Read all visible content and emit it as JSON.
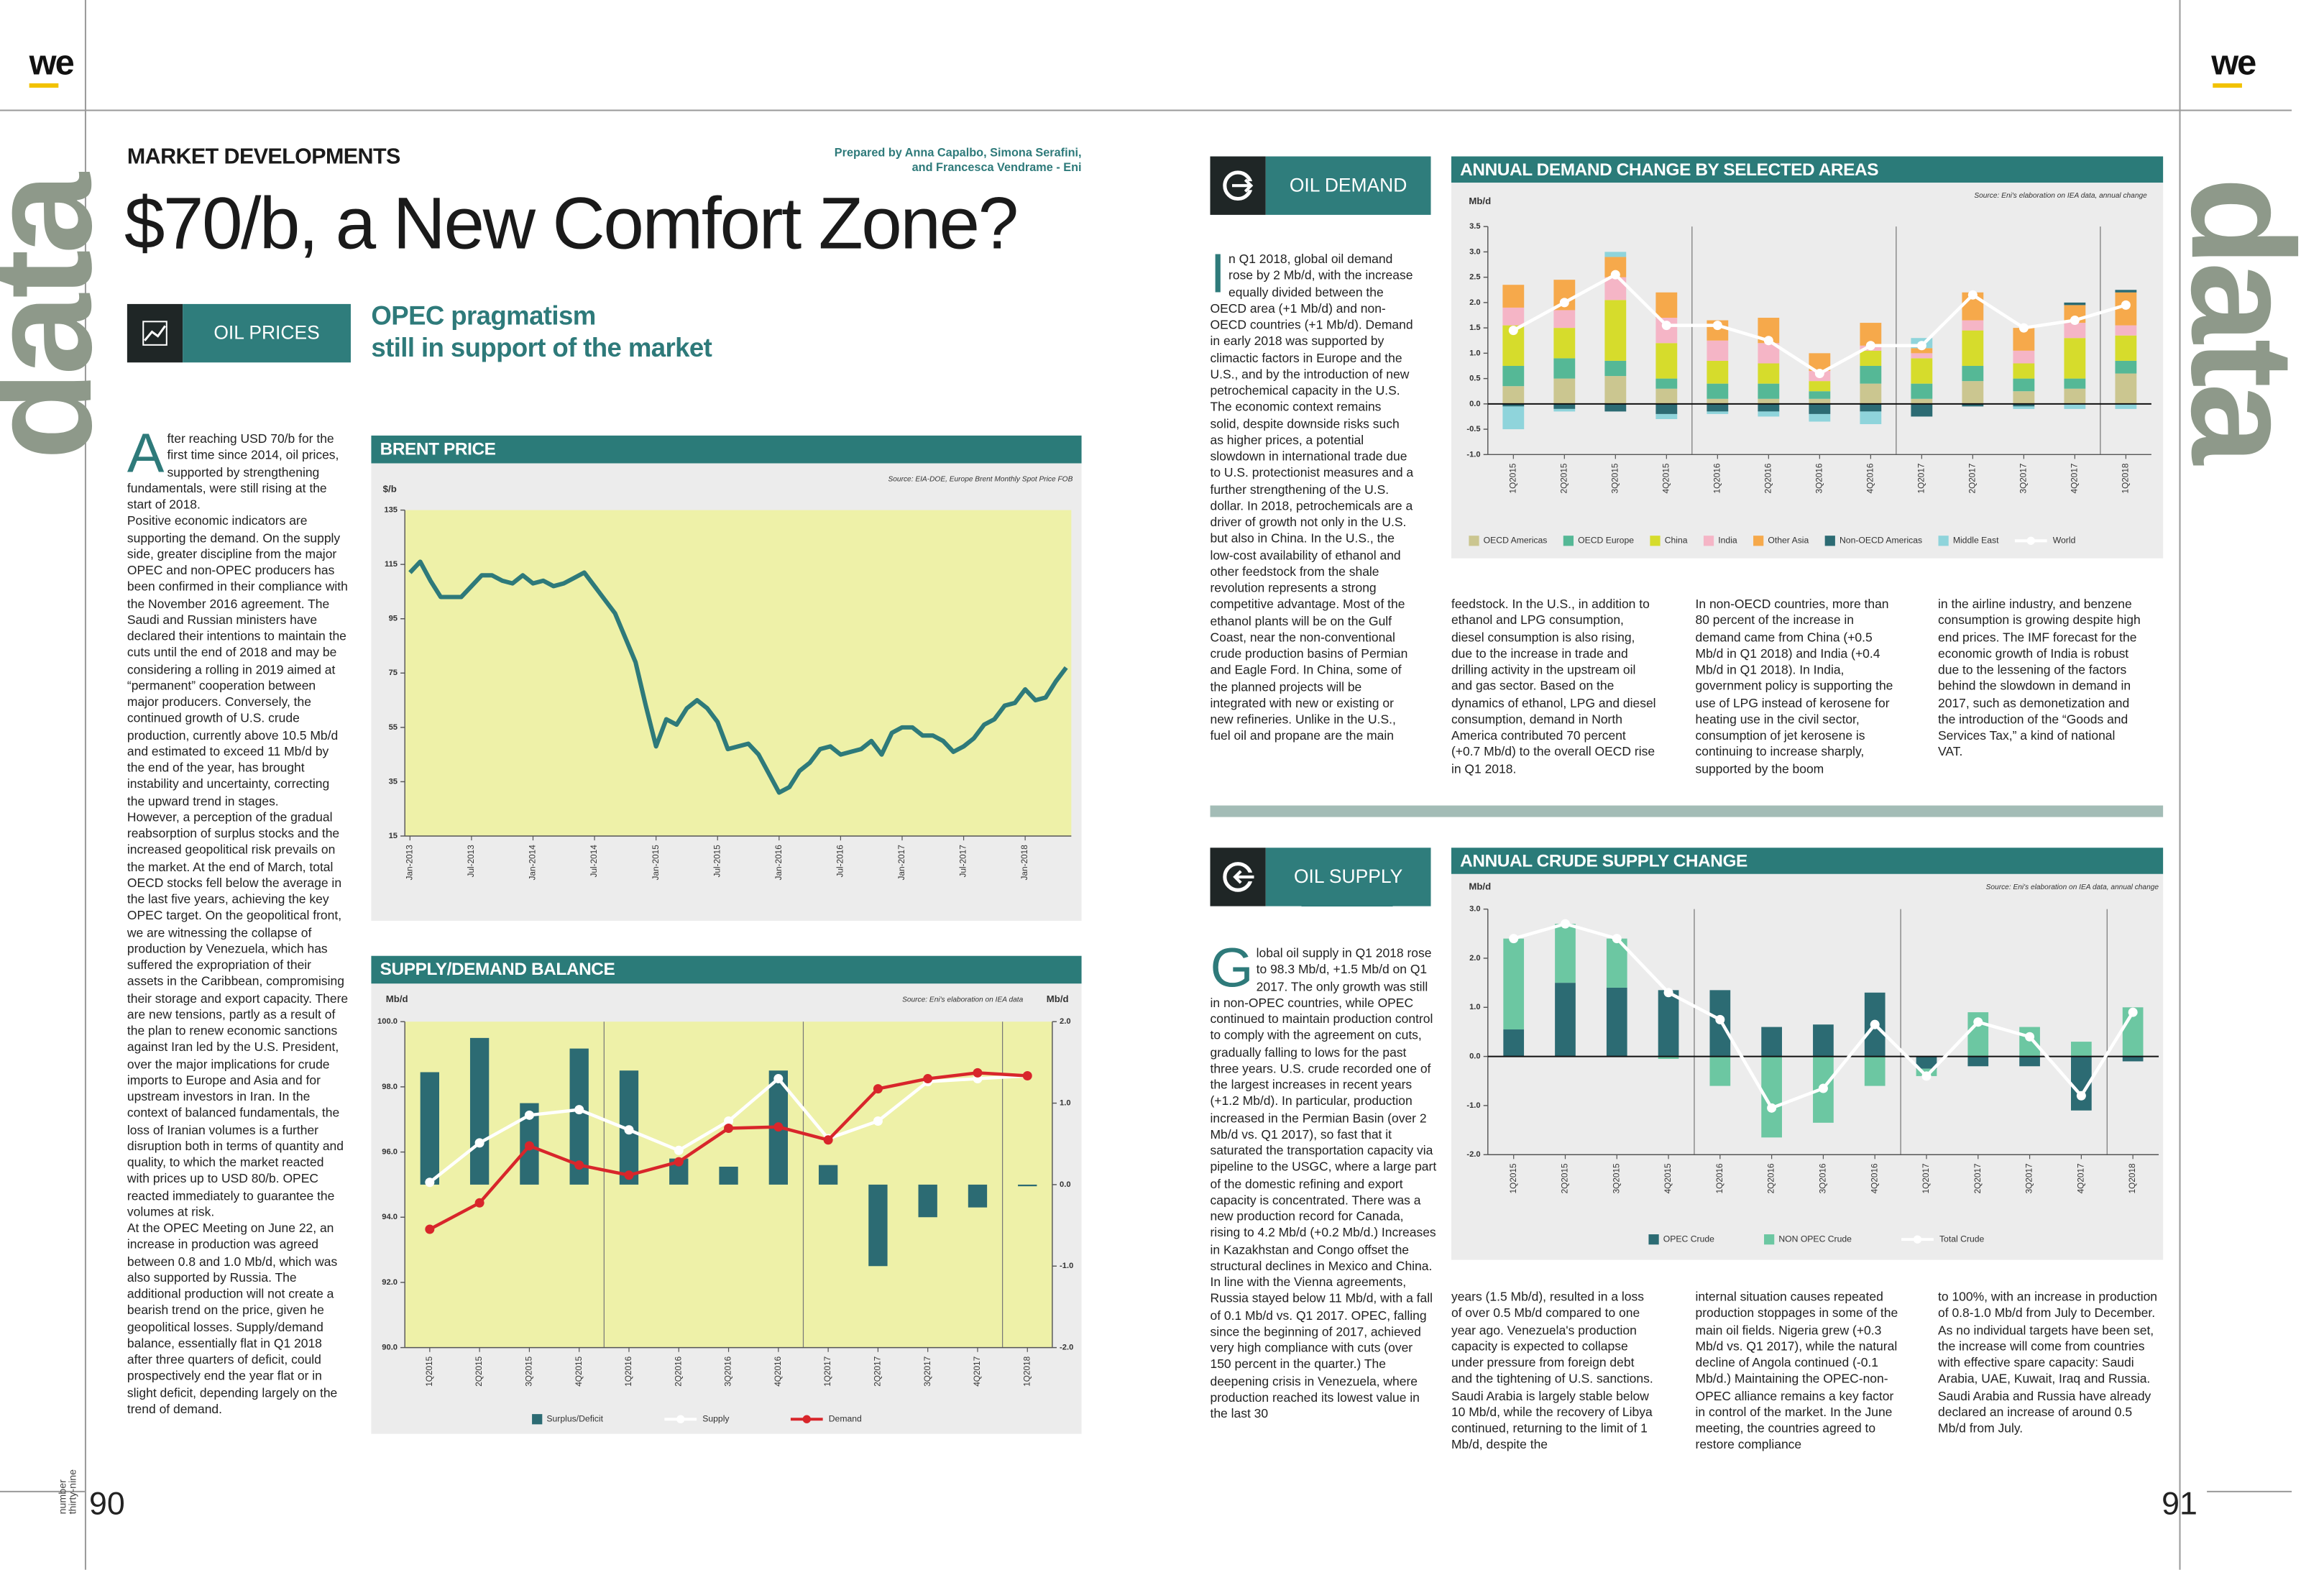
{
  "header": {
    "logo_left": "we",
    "logo_right": "we",
    "side_left": "data",
    "side_right": "data",
    "section": "MARKET DEVELOPMENTS",
    "authors": [
      "Prepared by Anna Capalbo, Simona Serafini,",
      "and Francesca Vendrame - Eni"
    ],
    "title": "$70/b, a New Comfort Zone?"
  },
  "oil_prices": {
    "label": "OIL PRICES",
    "subtitle": [
      "OPEC pragmatism",
      "still in support of the market"
    ],
    "paragraphs": [
      "After reaching USD 70/b for the first time since 2014, oil prices, supported by strengthening fundamentals, were still rising at the start of 2018.",
      "Positive economic indicators are supporting the demand. On the supply side, greater discipline from the major OPEC and non-OPEC producers has been confirmed in their compliance with the November 2016 agreement. The Saudi and Russian ministers have declared their intentions to maintain the cuts until the end of 2018 and may be considering a rolling in 2019 aimed at “permanent” cooperation between major producers. Conversely, the continued growth of U.S. crude production, currently above 10.5 Mb/d and estimated to exceed 11 Mb/d by the end of the year, has brought instability and uncertainty, correcting the upward trend in stages.",
      "However, a perception of the gradual reabsorption of surplus stocks and the increased geopolitical risk prevails on the market. At the end of March, total OECD stocks fell below the average in the last five years, achieving the key OPEC target. On the geopolitical front, we are witnessing the collapse of production by Venezuela, which has suffered the expropriation of their assets in the Caribbean, compromising their storage and export capacity. There are new tensions, partly as a result of the plan to renew economic sanctions against Iran led by the U.S. President, over the major implications for crude imports to Europe and Asia and for upstream investors in Iran. In the context of balanced fundamentals, the loss of Iranian volumes is a further disruption both in terms of quantity and quality, to which the market reacted with prices up to USD 80/b. OPEC reacted immediately to guarantee the volumes at risk.",
      "At the OPEC Meeting on June 22, an increase in production was agreed between 0.8 and 1.0 Mb/d, which was also supported by Russia. The additional production will not create a bearish trend on the price, given he geopolitical losses. Supply/demand balance, essentially flat in Q1 2018 after three quarters of deficit, could prospectively end the year flat or in slight deficit, depending largely on the trend of demand."
    ]
  },
  "oil_demand": {
    "label": "OIL DEMAND",
    "columns": [
      "In Q1 2018, global oil demand rose by 2 Mb/d, with the increase equally divided between the OECD area (+1 Mb/d) and non-OECD countries (+1 Mb/d). Demand in early 2018 was supported by climactic factors in Europe and the U.S., and by the introduction of new petrochemical capacity in the U.S. The economic context remains solid, despite downside risks such as higher prices, a potential slowdown in international trade due to U.S. protectionist measures and a further strengthening of the U.S. dollar. In 2018, petrochemicals are a driver of growth not only in the U.S. but also in China. In the U.S., the low-cost availability of ethanol and other feedstock from the shale revolution represents a strong competitive advantage. Most of the ethanol plants will be on the Gulf Coast, near the non-conventional crude production basins of Permian and Eagle Ford. In China, some of the planned projects will be integrated with new or existing or new refineries. Unlike in the U.S., fuel oil and propane are the main",
      "feedstock. In the U.S., in addition to ethanol and LPG consumption, diesel consumption is also rising, due to the increase in trade and drilling activity in the upstream oil and gas sector. Based on the dynamics of ethanol, LPG and diesel consumption, demand in North America contributed 70 percent (+0.7 Mb/d) to the overall OECD rise in Q1 2018.",
      "In non-OECD countries, more than 80 percent of the increase in demand came from China (+0.5 Mb/d in Q1 2018) and India (+0.4 Mb/d in Q1 2018). In India, government policy is supporting the use of LPG instead of kerosene for heating use in the civil sector, consumption of jet kerosene is continuing to increase sharply, supported by the boom",
      "in the airline industry, and benzene consumption is growing despite high end prices. The IMF forecast for the economic growth of India is robust due to the lessening of the factors behind the slowdown in demand in 2017, such as demonetization and the introduction of the “Goods and Services Tax,” a kind of national VAT."
    ]
  },
  "oil_supply": {
    "label": "OIL SUPPLY",
    "columns": [
      "Global oil supply in Q1 2018 rose to 98.3 Mb/d, +1.5 Mb/d on Q1 2017. The only growth was still in non-OPEC countries, while OPEC continued to maintain production control to comply with the agreement on cuts, gradually falling to lows for the past three years. U.S. crude recorded one of the largest increases in recent years (+1.2 Mb/d). In particular, production increased in the Permian Basin (over 2 Mb/d vs. Q1 2017), so fast that it saturated the transportation capacity via pipeline to the USGC, where a large part of the domestic refining and export capacity is concentrated. There was a new production record for Canada, rising to 4.2 Mb/d (+0.2 Mb/d.) Increases in Kazakhstan and Congo offset the structural declines in Mexico and China. In line with the Vienna agreements, Russia stayed below 11 Mb/d, with a fall of 0.1 Mb/d vs. Q1 2017. OPEC, falling since the beginning of 2017, achieved very high compliance with cuts (over 150 percent in the quarter.) The deepening crisis in Venezuela, where production reached its lowest value in the last 30",
      "years (1.5 Mb/d), resulted in a loss of over 0.5 Mb/d compared to one year ago. Venezuela's production capacity is expected to collapse under pressure from foreign debt and the tightening of U.S. sanctions. Saudi Arabia is largely stable below 10 Mb/d, while the recovery of Libya continued, returning to the limit of 1 Mb/d, despite the",
      "internal situation causes repeated production stoppages in some of the main oil fields. Nigeria grew (+0.3 Mb/d vs. Q1 2017), while the natural decline of Angola continued (-0.1 Mb/d.) Maintaining the OPEC-non-OPEC alliance remains a key factor in control of the market. In the June meeting, the countries agreed to restore compliance",
      "to 100%, with an increase in production of 0.8-1.0 Mb/d from July to December. As no individual targets have been set, the increase will come from countries with effective spare capacity: Saudi Arabia, UAE, Kuwait, Iraq and Russia. Saudi Arabia and Russia have already declared an increase of around 0.5 Mb/d from July."
    ]
  },
  "footer": {
    "page_left": "90",
    "page_right": "91",
    "issue": [
      "number",
      "thirty-nine"
    ]
  },
  "chart_data": [
    {
      "type": "line",
      "title": "BRENT PRICE",
      "source": "Source: EIA-DOE, Europe Brent Monthly Spot Price FOB",
      "y_label": "$/b",
      "categories": [
        "Jan-2013",
        null,
        null,
        null,
        null,
        null,
        "Jul-2013",
        null,
        null,
        null,
        null,
        null,
        "Jan-2014",
        null,
        null,
        null,
        null,
        null,
        "Jul-2014",
        null,
        null,
        null,
        null,
        null,
        "Jan-2015",
        null,
        null,
        null,
        null,
        null,
        "Jul-2015",
        null,
        null,
        null,
        null,
        null,
        "Jan-2016",
        null,
        null,
        null,
        null,
        null,
        "Jul-2016",
        null,
        null,
        null,
        null,
        null,
        "Jan-2017",
        null,
        null,
        null,
        null,
        null,
        "Jul-2017",
        null,
        null,
        null,
        null,
        null,
        "Jan-2018",
        null,
        null,
        null,
        null
      ],
      "values": [
        112,
        116,
        109,
        103,
        103,
        103,
        107,
        111,
        111,
        109,
        108,
        111,
        108,
        109,
        107,
        108,
        110,
        112,
        107,
        102,
        97,
        88,
        79,
        63,
        48,
        58,
        56,
        62,
        65,
        62,
        57,
        47,
        48,
        49,
        45,
        38,
        31,
        33,
        39,
        42,
        47,
        48,
        45,
        46,
        47,
        50,
        45,
        53,
        55,
        55,
        52,
        52,
        50,
        46,
        48,
        51,
        56,
        58,
        63,
        64,
        69,
        65,
        66,
        72,
        77
      ],
      "color": "#2e7a7a",
      "ylim": [
        15,
        135
      ],
      "yticks": [
        15,
        35,
        55,
        75,
        95,
        115,
        135
      ]
    },
    {
      "type": "combo",
      "title": "SUPPLY/DEMAND BALANCE",
      "source": "Source: Eni's elaboration on IEA data",
      "y_label": "Mb/d",
      "y2_label": "Mb/d",
      "categories": [
        "1Q2015",
        "2Q2015",
        "3Q2015",
        "4Q2015",
        "1Q2016",
        "2Q2016",
        "3Q2016",
        "4Q2016",
        "1Q2017",
        "2Q2017",
        "3Q2017",
        "4Q2017",
        "1Q2018"
      ],
      "series": [
        {
          "name": "Surplus/Deficit",
          "type": "bar",
          "axis": "y2",
          "color": "#2c6b73",
          "values": [
            1.38,
            1.8,
            1.0,
            1.67,
            1.4,
            0.32,
            0.22,
            1.4,
            0.24,
            -1.0,
            -0.4,
            -0.28,
            -0.02
          ]
        },
        {
          "name": "Supply",
          "type": "line",
          "color": "#ffffff",
          "values": [
            95.07,
            96.28,
            97.13,
            97.3,
            96.68,
            96.05,
            96.95,
            98.25,
            96.41,
            96.95,
            98.16,
            98.25,
            98.34
          ]
        },
        {
          "name": "Demand",
          "type": "line",
          "color": "#d8262b",
          "values": [
            93.63,
            94.44,
            96.19,
            95.6,
            95.29,
            95.7,
            96.73,
            96.77,
            96.37,
            97.94,
            98.25,
            98.43,
            98.34
          ]
        }
      ],
      "ylim": [
        90,
        100
      ],
      "yticks": [
        {
          "value": 90,
          "label": "90.0"
        },
        {
          "value": 92,
          "label": "92.0"
        },
        {
          "value": 94,
          "label": "94.0"
        },
        {
          "value": 96,
          "label": "96.0"
        },
        {
          "value": 98,
          "label": "98.0"
        },
        {
          "value": 100,
          "label": "100.0"
        }
      ],
      "y2lim": [
        -2,
        2
      ],
      "y2ticks": [
        {
          "value": -2,
          "label": "-2.0"
        },
        {
          "value": -1,
          "label": "-1.0"
        },
        {
          "value": 0,
          "label": "0.0"
        },
        {
          "value": 1,
          "label": "1.0"
        },
        {
          "value": 2,
          "label": "2.0"
        }
      ]
    },
    {
      "type": "stacked_bar",
      "title": "ANNUAL DEMAND CHANGE BY SELECTED AREAS",
      "source": "Source: Eni's elaboration on IEA data, annual change",
      "y_label": "Mb/d",
      "categories": [
        "1Q2015",
        "2Q2015",
        "3Q2015",
        "4Q2015",
        "1Q2016",
        "2Q2016",
        "3Q2016",
        "4Q2016",
        "1Q2017",
        "2Q2017",
        "3Q2017",
        "4Q2017",
        "1Q2018"
      ],
      "series": [
        {
          "name": "OECD Americas",
          "type": "bar",
          "color": "#cbc690",
          "values": [
            0.35,
            0.5,
            0.55,
            0.3,
            0.1,
            0.1,
            0.1,
            0.4,
            0.1,
            0.45,
            0.25,
            0.3,
            0.6
          ]
        },
        {
          "name": "OECD Europe",
          "type": "bar",
          "color": "#55b896",
          "values": [
            0.4,
            0.4,
            0.3,
            0.2,
            0.3,
            0.3,
            0.15,
            0.35,
            0.3,
            0.3,
            0.25,
            0.2,
            0.25
          ]
        },
        {
          "name": "China",
          "type": "bar",
          "color": "#d6dc2c",
          "values": [
            0.8,
            0.6,
            1.2,
            0.7,
            0.45,
            0.4,
            0.2,
            0.3,
            0.5,
            0.7,
            0.3,
            0.8,
            0.5
          ]
        },
        {
          "name": "India",
          "type": "bar",
          "color": "#f5b5c6",
          "values": [
            0.35,
            0.35,
            0.45,
            0.5,
            0.4,
            0.4,
            0.2,
            0.1,
            0.1,
            0.2,
            0.25,
            0.3,
            0.2
          ]
        },
        {
          "name": "Other Asia",
          "type": "bar",
          "color": "#f6a94b",
          "values": [
            0.45,
            0.6,
            0.4,
            0.5,
            0.4,
            0.5,
            0.35,
            0.45,
            0.1,
            0.55,
            0.45,
            0.35,
            0.65
          ]
        },
        {
          "name": "Non-OECD Americas",
          "type": "bar",
          "color": "#2c6b73",
          "values": [
            -0.05,
            -0.1,
            -0.15,
            -0.2,
            -0.15,
            -0.15,
            -0.2,
            -0.15,
            -0.25,
            -0.05,
            -0.05,
            0.05,
            0.05
          ]
        },
        {
          "name": "Middle East",
          "type": "bar",
          "color": "#8fd4db",
          "values": [
            -0.45,
            -0.05,
            0.1,
            -0.1,
            -0.05,
            -0.1,
            -0.15,
            -0.25,
            0.2,
            0,
            -0.05,
            -0.1,
            -0.1
          ]
        },
        {
          "name": "World",
          "type": "line",
          "color": "#ffffff",
          "values": [
            1.45,
            2.0,
            2.55,
            1.55,
            1.55,
            1.25,
            0.6,
            1.15,
            1.15,
            2.15,
            1.5,
            1.65,
            1.95
          ]
        }
      ],
      "ylim": [
        -1,
        3.5
      ],
      "yticks": [
        {
          "value": -1,
          "label": "-1.0"
        },
        -0.5,
        {
          "value": 0,
          "label": "0.0"
        },
        0.5,
        {
          "value": 1,
          "label": "1.0"
        },
        1.5,
        {
          "value": 2,
          "label": "2.0"
        },
        2.5,
        {
          "value": 3,
          "label": "3.0"
        },
        3.5
      ]
    },
    {
      "type": "stacked_bar",
      "title": "ANNUAL CRUDE SUPPLY CHANGE",
      "source": "Source: Eni's elaboration on IEA data, annual change",
      "y_label": "Mb/d",
      "categories": [
        "1Q2015",
        "2Q2015",
        "3Q2015",
        "4Q2015",
        "1Q2016",
        "2Q2016",
        "3Q2016",
        "4Q2016",
        "1Q2017",
        "2Q2017",
        "3Q2017",
        "4Q2017",
        "1Q2018"
      ],
      "series": [
        {
          "name": "OPEC Crude",
          "type": "bar",
          "color": "#2c6b73",
          "values": [
            0.55,
            1.5,
            1.4,
            1.35,
            1.35,
            0.6,
            0.65,
            1.3,
            -0.25,
            -0.2,
            -0.2,
            -1.1,
            -0.1
          ]
        },
        {
          "name": "NON OPEC Crude",
          "type": "bar",
          "color": "#6cc7a2",
          "values": [
            1.85,
            1.2,
            1.0,
            -0.05,
            -0.6,
            -1.65,
            -1.35,
            -0.6,
            -0.15,
            0.9,
            0.6,
            0.3,
            1.0
          ]
        },
        {
          "name": "Total Crude",
          "type": "line",
          "color": "#ffffff",
          "values": [
            2.4,
            2.7,
            2.4,
            1.3,
            0.75,
            -1.05,
            -0.65,
            0.65,
            -0.4,
            0.7,
            0.4,
            -0.8,
            0.9
          ]
        }
      ],
      "ylim": [
        -2,
        3
      ],
      "yticks": [
        {
          "value": -2,
          "label": "-2.0"
        },
        {
          "value": -1,
          "label": "-1.0"
        },
        {
          "value": 0,
          "label": "0.0"
        },
        {
          "value": 1,
          "label": "1.0"
        },
        {
          "value": 2,
          "label": "2.0"
        },
        {
          "value": 3,
          "label": "3.0"
        }
      ]
    }
  ]
}
